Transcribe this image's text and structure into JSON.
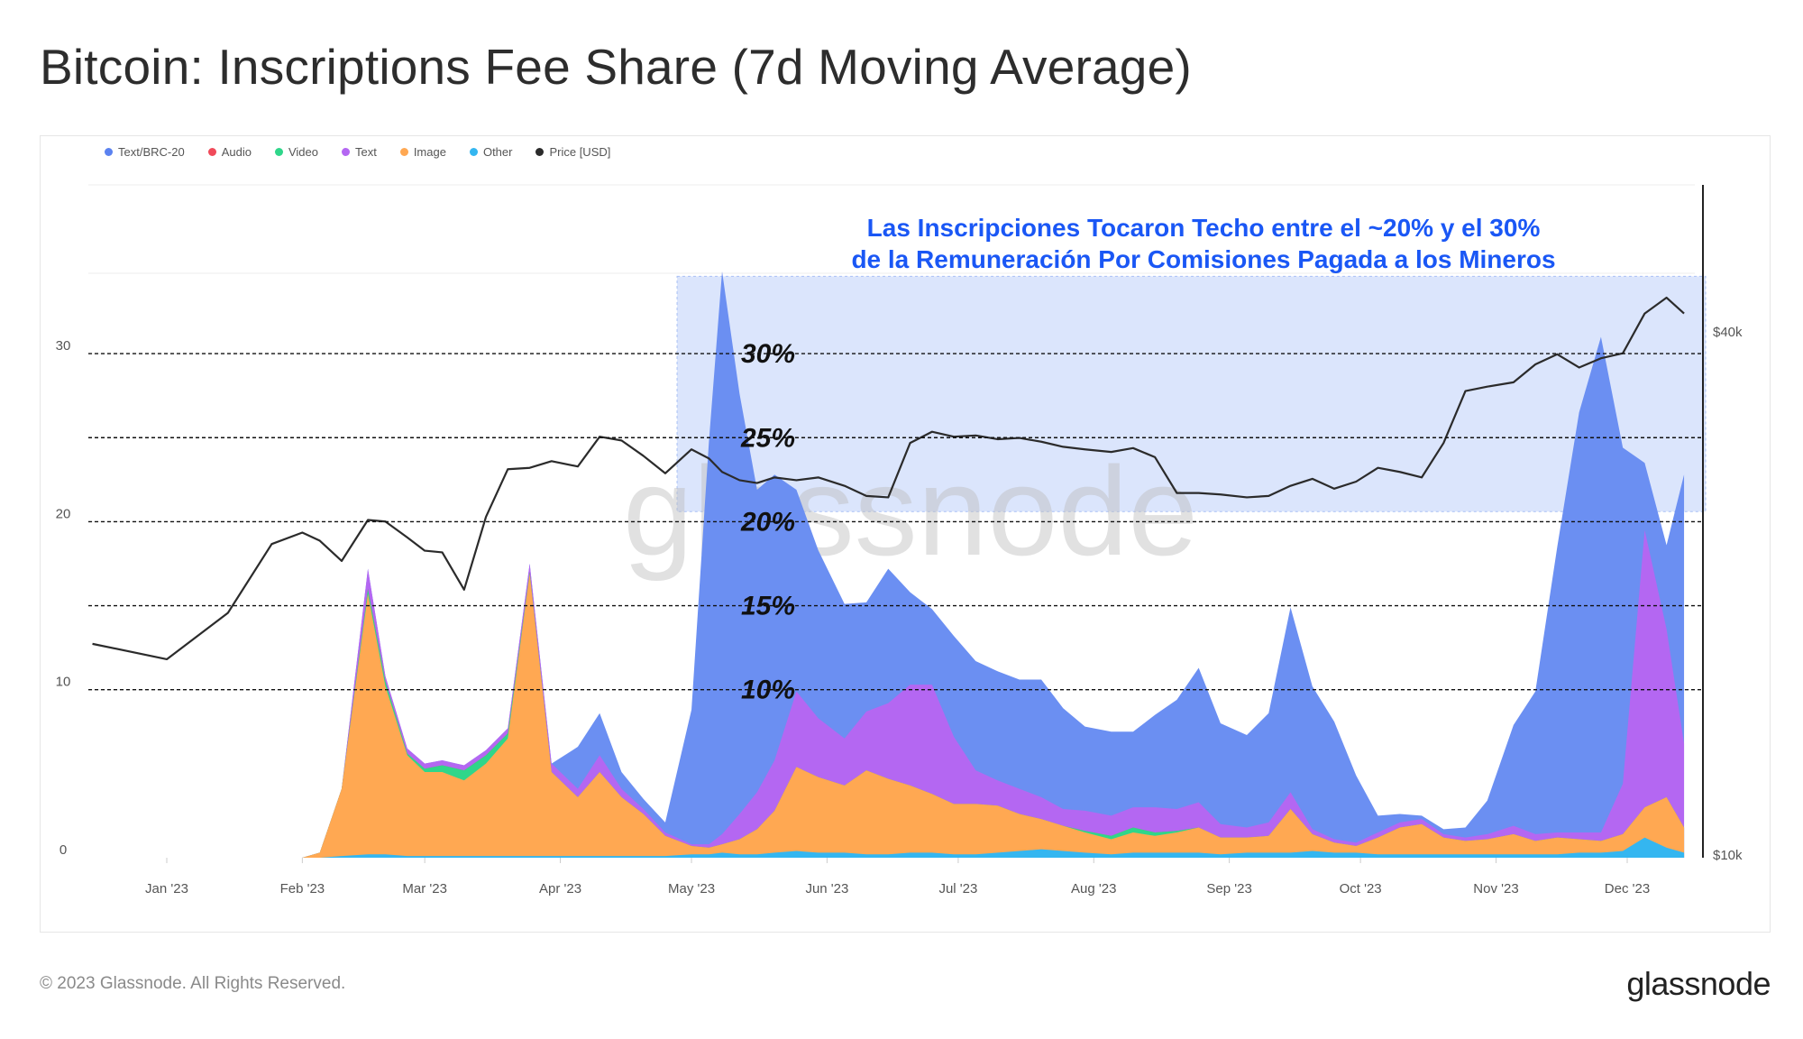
{
  "title": "Bitcoin: Inscriptions Fee Share (7d Moving Average)",
  "footer": {
    "copyright": "© 2023 Glassnode. All Rights Reserved.",
    "logo": "glassnode"
  },
  "watermark": "glassnode",
  "colors": {
    "text_brc20": "#6b8ff2",
    "audio": "#f04a5a",
    "video": "#2fd68a",
    "text": "#b467f2",
    "image": "#ffa852",
    "other": "#34b6f0",
    "price": "#2b2b2b",
    "highlight": "#cfdcfb",
    "annotation": "#1a57f5"
  },
  "legend": [
    {
      "label": "Text/BRC-20",
      "color": "#5b82f0"
    },
    {
      "label": "Audio",
      "color": "#f04a5a"
    },
    {
      "label": "Video",
      "color": "#2fd68a"
    },
    {
      "label": "Text",
      "color": "#b467f2"
    },
    {
      "label": "Image",
      "color": "#ffa852"
    },
    {
      "label": "Other",
      "color": "#34b6f0"
    },
    {
      "label": "Price [USD]",
      "color": "#2b2b2b"
    }
  ],
  "annotation": {
    "line1": "Las Inscripciones Tocaron Techo entre el ~20% y el 30%",
    "line2": "de la Remuneración Por Comisiones Pagada a los Mineros"
  },
  "chart_data": {
    "type": "area",
    "title": "Bitcoin: Inscriptions Fee Share (7d Moving Average)",
    "x_tick_labels": [
      "Jan '23",
      "Feb '23",
      "Mar '23",
      "Apr '23",
      "May '23",
      "Jun '23",
      "Jul '23",
      "Aug '23",
      "Sep '23",
      "Oct '23",
      "Nov '23",
      "Dec '23"
    ],
    "y_left_tick_labels": [
      "0",
      "10",
      "20",
      "30"
    ],
    "y_right_tick_labels": [
      "$10k",
      "$40k"
    ],
    "ylim_left": [
      0,
      35
    ],
    "price_scale": "log",
    "reference_lines": [
      {
        "value": 10,
        "label": "10%"
      },
      {
        "value": 15,
        "label": "15%"
      },
      {
        "value": 20,
        "label": "20%"
      },
      {
        "value": 25,
        "label": "25%"
      },
      {
        "value": 30,
        "label": "30%"
      }
    ],
    "highlight_band": {
      "x_from": "2023-05-01",
      "x_to": "2023-12-31",
      "y_from": 20.6,
      "y_to": 34.6
    },
    "x": [
      "2022-12-15",
      "2023-01-01",
      "2023-01-15",
      "2023-01-25",
      "2023-02-01",
      "2023-02-05",
      "2023-02-10",
      "2023-02-16",
      "2023-02-20",
      "2023-02-25",
      "2023-03-01",
      "2023-03-05",
      "2023-03-10",
      "2023-03-15",
      "2023-03-20",
      "2023-03-25",
      "2023-03-30",
      "2023-04-05",
      "2023-04-10",
      "2023-04-15",
      "2023-04-20",
      "2023-04-25",
      "2023-05-01",
      "2023-05-05",
      "2023-05-08",
      "2023-05-12",
      "2023-05-16",
      "2023-05-20",
      "2023-05-25",
      "2023-05-30",
      "2023-06-05",
      "2023-06-10",
      "2023-06-15",
      "2023-06-20",
      "2023-06-25",
      "2023-06-30",
      "2023-07-05",
      "2023-07-10",
      "2023-07-15",
      "2023-07-20",
      "2023-07-25",
      "2023-07-30",
      "2023-08-05",
      "2023-08-10",
      "2023-08-15",
      "2023-08-20",
      "2023-08-25",
      "2023-08-30",
      "2023-09-05",
      "2023-09-10",
      "2023-09-15",
      "2023-09-20",
      "2023-09-25",
      "2023-09-30",
      "2023-10-05",
      "2023-10-10",
      "2023-10-15",
      "2023-10-20",
      "2023-10-25",
      "2023-10-30",
      "2023-11-05",
      "2023-11-10",
      "2023-11-15",
      "2023-11-20",
      "2023-11-25",
      "2023-11-30",
      "2023-12-05",
      "2023-12-10",
      "2023-12-14"
    ],
    "series": [
      {
        "name": "Other",
        "values": [
          0,
          0,
          0,
          0,
          0,
          0,
          0.1,
          0.2,
          0.2,
          0.1,
          0.1,
          0.1,
          0.1,
          0.1,
          0.1,
          0.1,
          0.1,
          0.1,
          0.1,
          0.1,
          0.1,
          0.1,
          0.2,
          0.2,
          0.3,
          0.2,
          0.2,
          0.3,
          0.4,
          0.3,
          0.3,
          0.2,
          0.2,
          0.3,
          0.3,
          0.2,
          0.2,
          0.3,
          0.4,
          0.5,
          0.4,
          0.3,
          0.2,
          0.3,
          0.3,
          0.3,
          0.3,
          0.2,
          0.3,
          0.3,
          0.3,
          0.4,
          0.3,
          0.3,
          0.2,
          0.2,
          0.2,
          0.2,
          0.2,
          0.2,
          0.2,
          0.2,
          0.2,
          0.3,
          0.3,
          0.4,
          1.2,
          0.6,
          0.3
        ]
      },
      {
        "name": "Image",
        "values": [
          0,
          0,
          0,
          0,
          0,
          0.3,
          4.0,
          15.5,
          10.0,
          6.0,
          5.0,
          5.0,
          4.5,
          5.5,
          7.0,
          16.8,
          5.0,
          3.5,
          5.0,
          3.5,
          2.5,
          1.2,
          0.5,
          0.4,
          0.5,
          0.9,
          1.5,
          2.5,
          5.0,
          4.5,
          4.0,
          5.0,
          4.5,
          4.0,
          3.5,
          3.0,
          3.0,
          2.8,
          2.2,
          1.8,
          1.5,
          1.2,
          0.9,
          1.2,
          1.0,
          1.2,
          1.5,
          1.0,
          0.9,
          1.0,
          2.6,
          1.0,
          0.6,
          0.4,
          1.0,
          1.6,
          1.8,
          1.0,
          0.8,
          0.9,
          1.2,
          0.8,
          1.0,
          0.8,
          0.7,
          1.0,
          1.8,
          3.0,
          1.5
        ]
      },
      {
        "name": "Video",
        "values": [
          0,
          0,
          0,
          0,
          0,
          0,
          0,
          0.3,
          0.3,
          0.1,
          0.2,
          0.4,
          0.6,
          0.5,
          0.3,
          0.1,
          0,
          0,
          0,
          0,
          0,
          0,
          0,
          0,
          0,
          0,
          0,
          0,
          0,
          0,
          0,
          0,
          0,
          0,
          0,
          0,
          0,
          0,
          0,
          0,
          0,
          0.1,
          0.2,
          0.3,
          0.2,
          0.1,
          0,
          0,
          0,
          0,
          0,
          0,
          0,
          0,
          0,
          0,
          0,
          0,
          0,
          0,
          0,
          0,
          0,
          0,
          0,
          0,
          0,
          0,
          0
        ]
      },
      {
        "name": "Audio",
        "values": [
          0,
          0,
          0,
          0,
          0,
          0,
          0,
          0,
          0,
          0,
          0,
          0,
          0,
          0,
          0,
          0,
          0,
          0,
          0,
          0,
          0,
          0,
          0,
          0,
          0,
          0,
          0,
          0,
          0,
          0,
          0,
          0,
          0,
          0,
          0,
          0,
          0,
          0,
          0,
          0,
          0,
          0,
          0,
          0,
          0,
          0,
          0,
          0,
          0,
          0,
          0,
          0,
          0,
          0,
          0,
          0,
          0,
          0,
          0,
          0,
          0,
          0,
          0,
          0,
          0,
          0,
          0,
          0,
          0
        ]
      },
      {
        "name": "Text",
        "values": [
          0,
          0,
          0,
          0,
          0,
          0,
          0,
          1.2,
          0.3,
          0.3,
          0.3,
          0.3,
          0.3,
          0.3,
          0.3,
          0.5,
          0.5,
          0.5,
          1.0,
          0.5,
          0.3,
          0.2,
          0.1,
          0.2,
          0.6,
          1.5,
          2.2,
          3.0,
          4.5,
          3.5,
          2.8,
          3.5,
          4.5,
          6.0,
          6.5,
          4.0,
          2.0,
          1.5,
          1.5,
          1.3,
          1.0,
          1.2,
          1.2,
          1.2,
          1.5,
          1.3,
          1.5,
          0.8,
          0.6,
          0.8,
          1.0,
          0.3,
          0.2,
          0.2,
          0.3,
          0.3,
          0.3,
          0.2,
          0.2,
          0.3,
          0.5,
          0.4,
          0.3,
          0.4,
          0.5,
          3.0,
          16.5,
          10.0,
          5.0
        ]
      },
      {
        "name": "Text/BRC-20",
        "values": [
          0,
          0,
          0,
          0,
          0,
          0,
          0,
          0,
          0,
          0,
          0,
          0,
          0,
          0,
          0,
          0,
          0,
          2.5,
          2.5,
          1.0,
          0.6,
          0.6,
          8.0,
          24.0,
          33.5,
          25.0,
          18.0,
          17.0,
          12.0,
          10.0,
          8.0,
          6.5,
          8.0,
          5.5,
          4.5,
          6.0,
          6.5,
          6.5,
          6.5,
          7.0,
          6.0,
          5.0,
          5.0,
          4.5,
          5.5,
          6.5,
          8.0,
          6.0,
          5.5,
          6.5,
          11.0,
          8.5,
          7.0,
          4.0,
          1.0,
          0.5,
          0.2,
          0.3,
          0.6,
          2.0,
          6.0,
          8.5,
          17.0,
          25.0,
          29.5,
          20.0,
          4.0,
          5.0,
          16.0
        ]
      },
      {
        "name": "Price [USD]",
        "axis": "right",
        "values": [
          17500,
          16800,
          19000,
          22800,
          23500,
          23000,
          21800,
          24300,
          24200,
          23200,
          22400,
          22300,
          20200,
          24500,
          27800,
          27900,
          28400,
          28000,
          30300,
          30000,
          28800,
          27500,
          29300,
          28600,
          27600,
          27000,
          26800,
          27200,
          27000,
          27200,
          26600,
          25900,
          25800,
          29800,
          30700,
          30300,
          30400,
          30100,
          30200,
          29900,
          29500,
          29300,
          29100,
          29400,
          28700,
          26100,
          26100,
          26000,
          25800,
          25900,
          26600,
          27100,
          26400,
          26900,
          27900,
          27600,
          27200,
          29800,
          34200,
          34600,
          35000,
          36700,
          37700,
          36400,
          37300,
          37800,
          42000,
          43800,
          42000
        ]
      }
    ]
  }
}
